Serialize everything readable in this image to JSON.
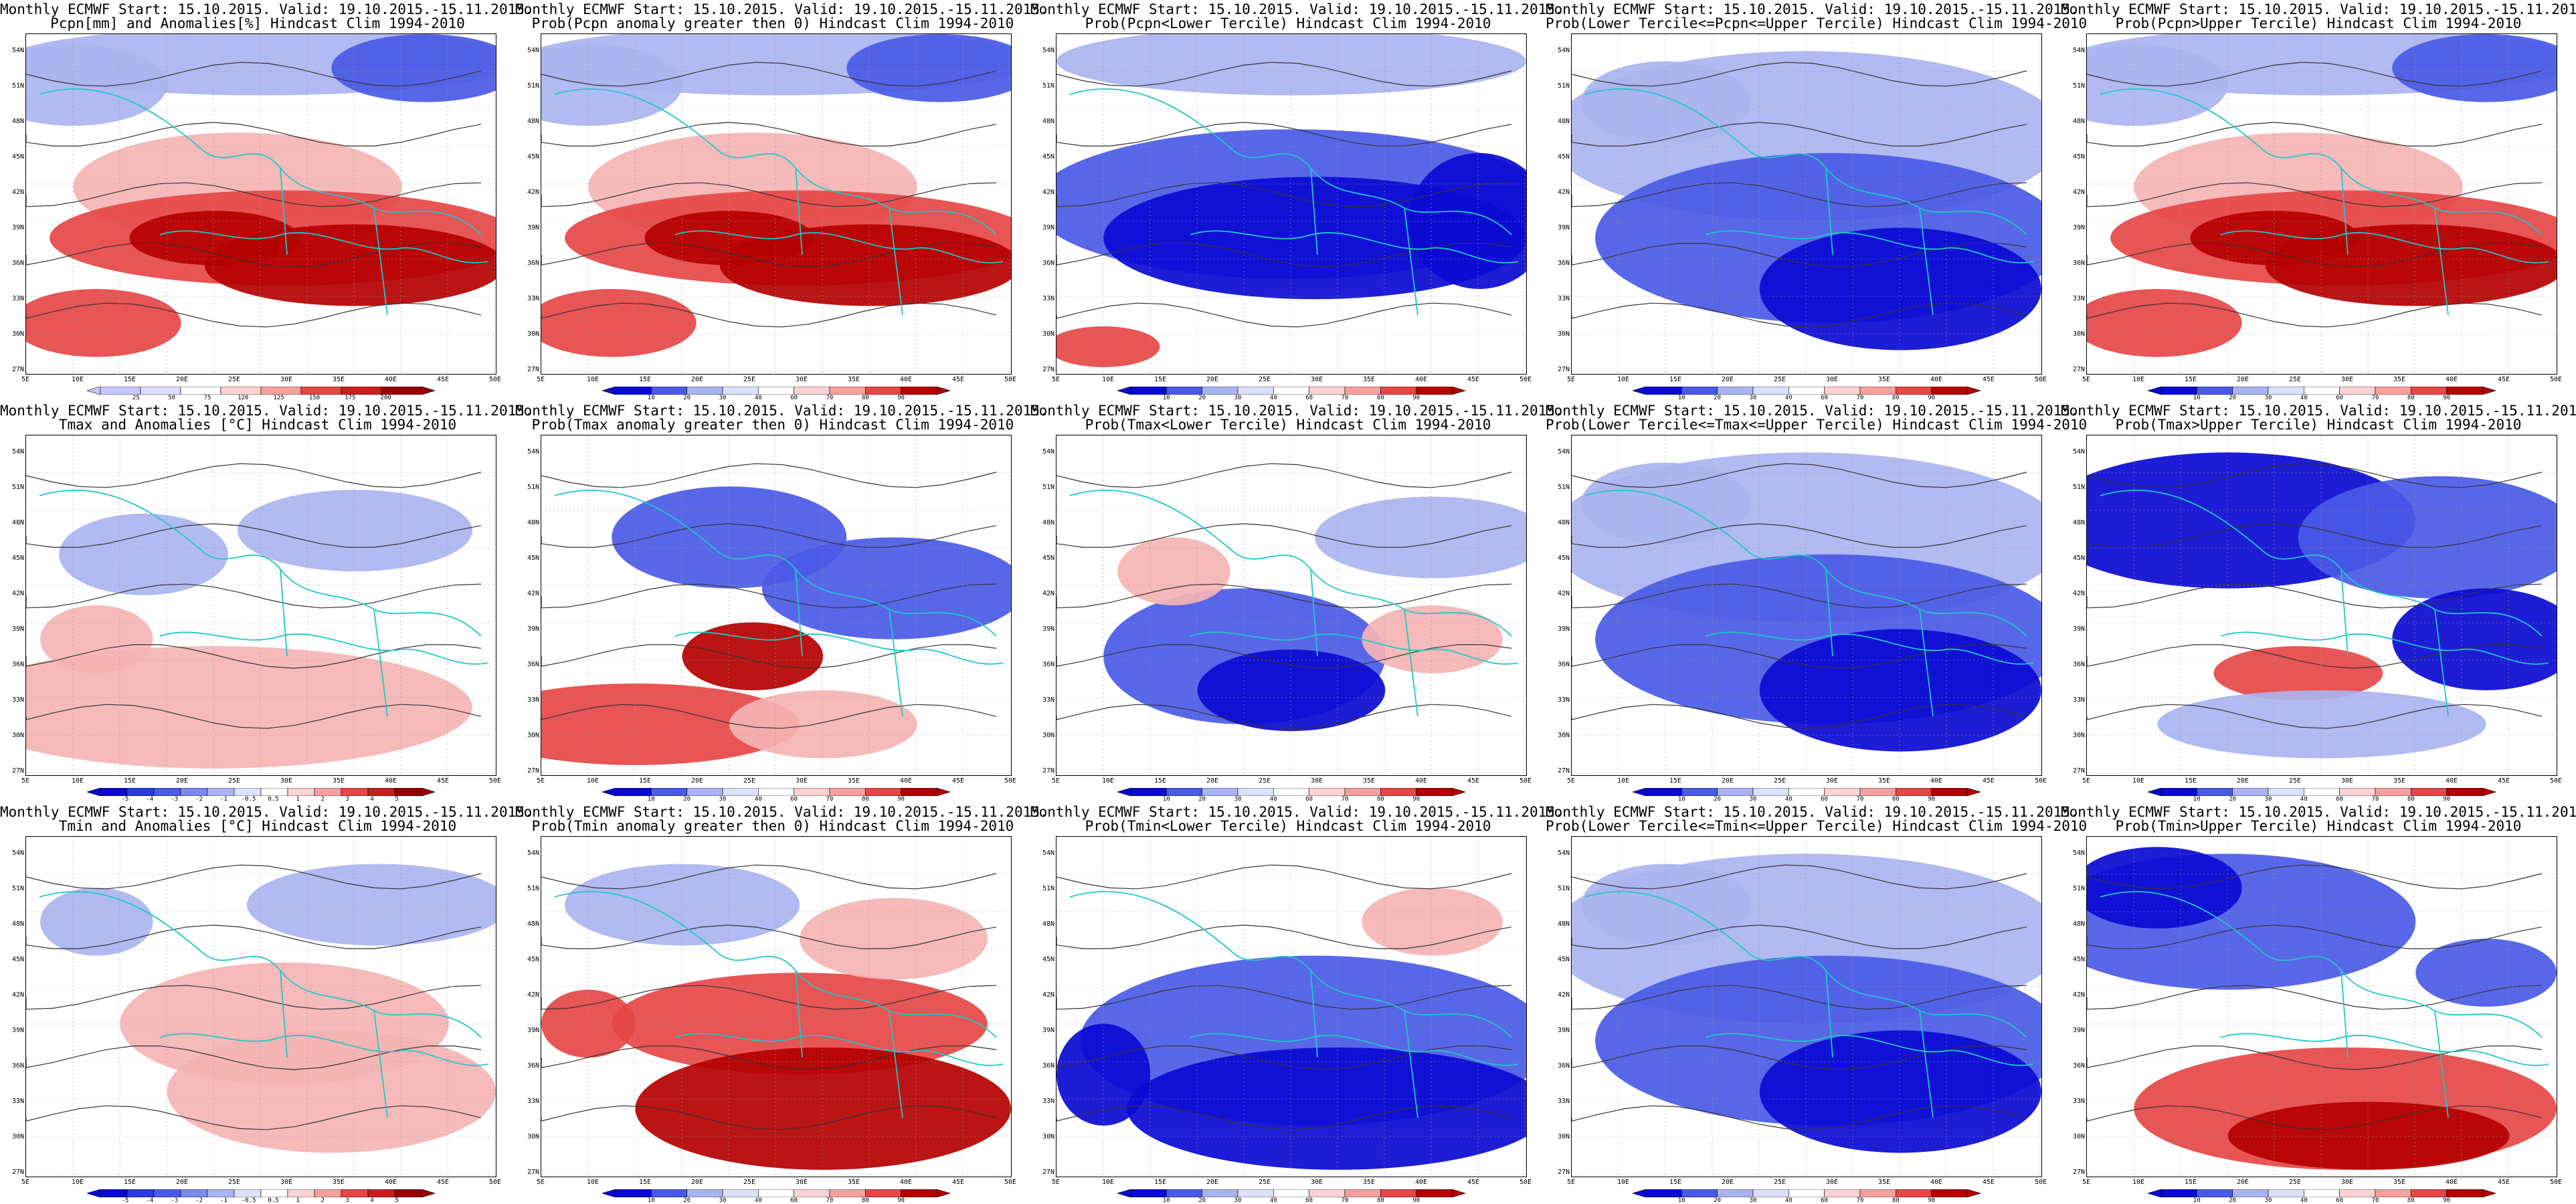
{
  "lat_labels": [
    "54N",
    "51N",
    "48N",
    "45N",
    "42N",
    "39N",
    "36N",
    "33N",
    "30N",
    "27N"
  ],
  "lon_labels": [
    "5E",
    "10E",
    "15E",
    "20E",
    "25E",
    "30E",
    "35E",
    "40E",
    "45E",
    "50E"
  ],
  "colorbars": {
    "pcpn_anom": [
      "25",
      "50",
      "75",
      "120",
      "125",
      "150",
      "175",
      "200"
    ],
    "temp_anom": [
      "-5",
      "-4",
      "-3",
      "-2",
      "-1",
      "-0.5",
      "0.5",
      "1",
      "2",
      "3",
      "4",
      "5"
    ],
    "prob": [
      "10",
      "20",
      "30",
      "40",
      "60",
      "70",
      "80",
      "90"
    ]
  },
  "colors": {
    "blue_dark": "#0a0ad2",
    "blue_mid": "#4a5ae6",
    "blue_light": "#aab4f0",
    "white": "#ffffff",
    "red_light": "#f5b4b4",
    "red_mid": "#e64646",
    "red_dark": "#b40000",
    "coast": "#1ec8c8",
    "contour": "#333333"
  },
  "panels": [
    {
      "title1": "Monthly ECMWF Start: 15.10.2015. Valid: 19.10.2015.-15.11.2015.",
      "title2": "Pcpn[mm] and Anomalies[%] Hindcast Clim 1994-2010",
      "colorbar": "pcpn_anom",
      "pattern": "pcpn_red"
    },
    {
      "title1": "Monthly ECMWF Start: 15.10.2015. Valid: 19.10.2015.-15.11.2015.",
      "title2": "Prob(Pcpn anomaly greater then 0) Hindcast Clim 1994-2010",
      "colorbar": "prob",
      "pattern": "pcpn_red"
    },
    {
      "title1": "Monthly ECMWF Start: 15.10.2015. Valid: 19.10.2015.-15.11.2015.",
      "title2": "Prob(Pcpn<Lower Tercile) Hindcast Clim 1994-2010",
      "colorbar": "prob",
      "pattern": "pcpn_blue"
    },
    {
      "title1": "Monthly ECMWF Start: 15.10.2015. Valid: 19.10.2015.-15.11.2015.",
      "title2": "Prob(Lower Tercile<=Pcpn<=Upper Tercile) Hindcast Clim 1994-2010",
      "colorbar": "prob",
      "pattern": "mid_blue"
    },
    {
      "title1": "Monthly ECMWF Start: 15.10.2015. Valid: 19.10.2015.-15.11.2015.",
      "title2": "Prob(Pcpn>Upper Tercile) Hindcast Clim 1994-2010",
      "colorbar": "prob",
      "pattern": "pcpn_red"
    },
    {
      "title1": "Monthly ECMWF Start: 15.10.2015. Valid: 19.10.2015.-15.11.2015.",
      "title2": "Tmax and Anomalies [°C] Hindcast Clim 1994-2010",
      "colorbar": "temp_anom",
      "pattern": "tmax_anom"
    },
    {
      "title1": "Monthly ECMWF Start: 15.10.2015. Valid: 19.10.2015.-15.11.2015.",
      "title2": "Prob(Tmax anomaly greater then 0) Hindcast Clim 1994-2010",
      "colorbar": "prob",
      "pattern": "tmax_prob"
    },
    {
      "title1": "Monthly ECMWF Start: 15.10.2015. Valid: 19.10.2015.-15.11.2015.",
      "title2": "Prob(Tmax<Lower Tercile) Hindcast Clim 1994-2010",
      "colorbar": "prob",
      "pattern": "tmax_low"
    },
    {
      "title1": "Monthly ECMWF Start: 15.10.2015. Valid: 19.10.2015.-15.11.2015.",
      "title2": "Prob(Lower Tercile<=Tmax<=Upper Tercile) Hindcast Clim 1994-2010",
      "colorbar": "prob",
      "pattern": "mid_blue"
    },
    {
      "title1": "Monthly ECMWF Start: 15.10.2015. Valid: 19.10.2015.-15.11.2015.",
      "title2": "Prob(Tmax>Upper Tercile) Hindcast Clim 1994-2010",
      "colorbar": "prob",
      "pattern": "tmax_up"
    },
    {
      "title1": "Monthly ECMWF Start: 15.10.2015. Valid: 19.10.2015.-15.11.2015.",
      "title2": "Tmin and Anomalies [°C] Hindcast Clim 1994-2010",
      "colorbar": "temp_anom",
      "pattern": "tmin_anom"
    },
    {
      "title1": "Monthly ECMWF Start: 15.10.2015. Valid: 19.10.2015.-15.11.2015.",
      "title2": "Prob(Tmin anomaly greater then 0) Hindcast Clim 1994-2010",
      "colorbar": "prob",
      "pattern": "tmin_prob"
    },
    {
      "title1": "Monthly ECMWF Start: 15.10.2015. Valid: 19.10.2015.-15.11.2015.",
      "title2": "Prob(Tmin<Lower Tercile) Hindcast Clim 1994-2010",
      "colorbar": "prob",
      "pattern": "tmin_low"
    },
    {
      "title1": "Monthly ECMWF Start: 15.10.2015. Valid: 19.10.2015.-15.11.2015.",
      "title2": "Prob(Lower Tercile<=Tmin<=Upper Tercile) Hindcast Clim 1994-2010",
      "colorbar": "prob",
      "pattern": "mid_blue"
    },
    {
      "title1": "Monthly ECMWF Start: 15.10.2015. Valid: 19.10.2015.-15.11.2015.",
      "title2": "Prob(Tmin>Upper Tercile) Hindcast Clim 1994-2010",
      "colorbar": "prob",
      "pattern": "tmin_up"
    }
  ]
}
